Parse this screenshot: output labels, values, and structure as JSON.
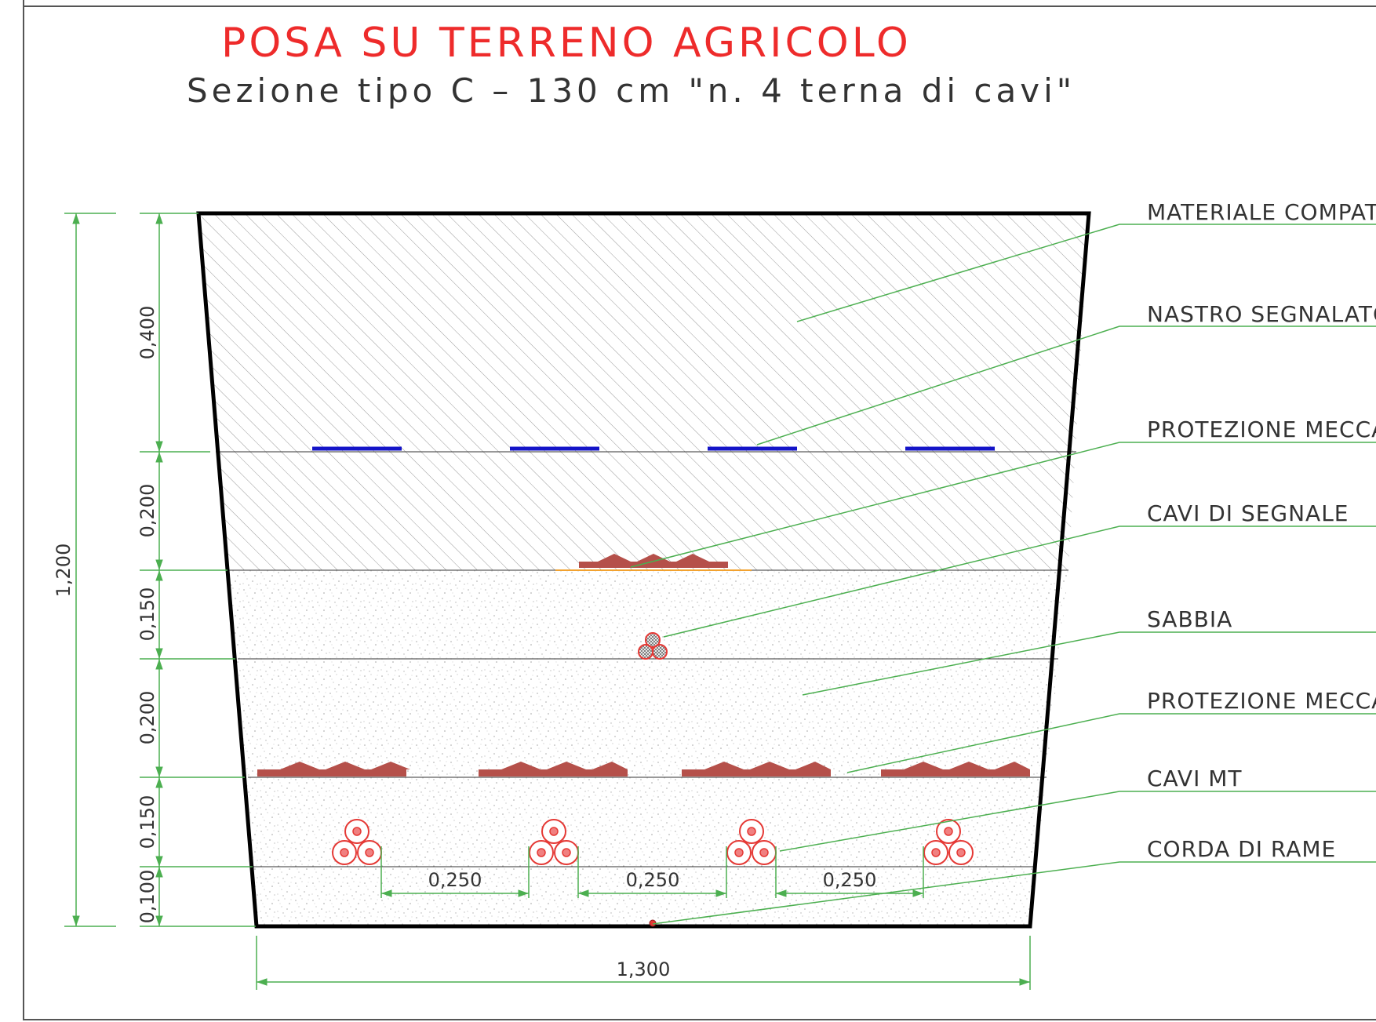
{
  "title": "POSA SU TERRENO AGRICOLO",
  "subtitle": "Sezione tipo C – 130 cm \"n. 4 terna di cavi\"",
  "dimensions": {
    "layers": [
      "0,400",
      "0,200",
      "0,150",
      "0,200",
      "0,150",
      "0,100"
    ],
    "total_height": "1,200",
    "spacings": [
      "0,250",
      "0,250",
      "0,250"
    ],
    "total_width": "1,300"
  },
  "labels": [
    "MATERIALE COMPATTATO",
    "NASTRO SEGNALATORE",
    "PROTEZIONE MECCANICA",
    "CAVI DI SEGNALE",
    "SABBIA",
    "PROTEZIONE MECCANICA",
    "CAVI MT",
    "CORDA DI RAME"
  ],
  "colors": {
    "title": "#ee2b2b",
    "dimension_lines": "#4caf50",
    "leader_lines": "#4caf50",
    "signal_tape": "#1414c8",
    "mechanical_protection": "#b5504a",
    "cables": "#e53935",
    "outline": "#000000"
  }
}
